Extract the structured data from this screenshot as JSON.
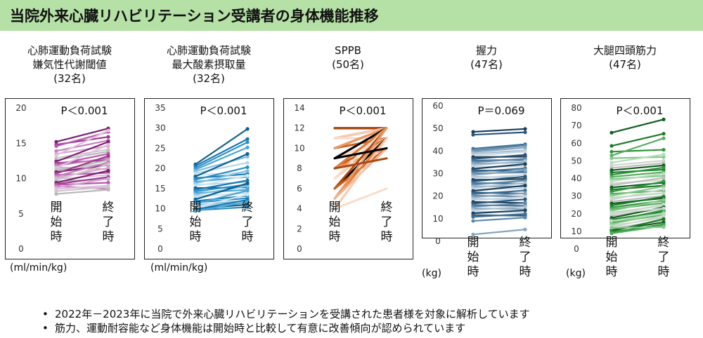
{
  "title": "当院外来心臓リハビリテーション受講者の身体機能推移",
  "colors": {
    "title_bg": "#b5e0a6"
  },
  "notes": [
    "2022年－2023年に当院で外来心臓リハビリテーションを受講された患者様を対象に解析しています",
    "筋力、運動耐容能など身体機能は開始時と比較して有意に改善傾向が認められています"
  ],
  "chart_data": [
    {
      "type": "line",
      "title_lines": [
        "心肺運動負荷試験",
        "嫌気性代謝閾値",
        "(32名)"
      ],
      "p_label": "P＜0.001",
      "unit": "(ml/min/kg)",
      "categories": [
        "開始時",
        "終了時"
      ],
      "ylim": [
        0,
        20
      ],
      "yticks": [
        0,
        5,
        10,
        15,
        20
      ],
      "palette": [
        "#7a1f6e",
        "#9b3a90",
        "#b659aa",
        "#c77fbd",
        "#d6a3cf",
        "#e2bfdd",
        "#c9c9c9",
        "#b9b9b9"
      ],
      "pairs": [
        [
          15.2,
          17.1
        ],
        [
          14.8,
          15.9
        ],
        [
          14.6,
          16.6
        ],
        [
          13.9,
          15.4
        ],
        [
          13.5,
          14.6
        ],
        [
          13.3,
          16.8
        ],
        [
          12.9,
          14.1
        ],
        [
          12.6,
          13.8
        ],
        [
          12.4,
          15.2
        ],
        [
          12.2,
          12.6
        ],
        [
          12.0,
          13.5
        ],
        [
          11.8,
          12.9
        ],
        [
          11.6,
          11.3
        ],
        [
          11.5,
          14.8
        ],
        [
          11.3,
          12.1
        ],
        [
          11.1,
          12.6
        ],
        [
          10.9,
          11.9
        ],
        [
          10.7,
          13.2
        ],
        [
          10.5,
          10.8
        ],
        [
          10.3,
          12.3
        ],
        [
          10.1,
          11.5
        ],
        [
          9.9,
          10.5
        ],
        [
          9.8,
          12.0
        ],
        [
          9.6,
          9.9
        ],
        [
          9.4,
          11.1
        ],
        [
          9.2,
          10.2
        ],
        [
          9.1,
          9.4
        ],
        [
          8.9,
          8.5
        ],
        [
          8.7,
          10.0
        ],
        [
          8.5,
          9.0
        ],
        [
          8.2,
          8.8
        ],
        [
          7.8,
          8.4
        ]
      ]
    },
    {
      "type": "line",
      "title_lines": [
        "心肺運動負荷試験",
        "最大酸素摂取量",
        "(32名)"
      ],
      "p_label": "P＜0.001",
      "unit": "(ml/min/kg)",
      "categories": [
        "開始時",
        "終了時"
      ],
      "ylim": [
        0,
        35
      ],
      "yticks": [
        0,
        5,
        10,
        15,
        20,
        25,
        30,
        35
      ],
      "palette": [
        "#0e5f8c",
        "#1778b0",
        "#2b8fc6",
        "#4aa5d6",
        "#7fbfe2",
        "#b3d7ee",
        "#d2e6f3"
      ],
      "pairs": [
        [
          21.0,
          29.8
        ],
        [
          20.6,
          27.3
        ],
        [
          20.1,
          26.5
        ],
        [
          19.7,
          25.2
        ],
        [
          19.3,
          22.9
        ],
        [
          18.8,
          21.4
        ],
        [
          18.4,
          19.0
        ],
        [
          18.0,
          23.6
        ],
        [
          17.6,
          18.6
        ],
        [
          17.2,
          20.3
        ],
        [
          16.7,
          17.9
        ],
        [
          16.3,
          19.4
        ],
        [
          15.9,
          16.6
        ],
        [
          15.5,
          18.2
        ],
        [
          15.1,
          15.3
        ],
        [
          14.7,
          17.0
        ],
        [
          14.3,
          16.0
        ],
        [
          13.9,
          14.7
        ],
        [
          13.5,
          15.6
        ],
        [
          13.1,
          13.9
        ],
        [
          12.7,
          14.2
        ],
        [
          12.3,
          16.3
        ],
        [
          11.9,
          13.2
        ],
        [
          11.5,
          12.6
        ],
        [
          11.2,
          14.5
        ],
        [
          10.9,
          12.0
        ],
        [
          10.6,
          11.4
        ],
        [
          10.3,
          13.5
        ],
        [
          10.0,
          11.0
        ],
        [
          9.8,
          12.2
        ],
        [
          9.6,
          10.4
        ],
        [
          9.4,
          11.7
        ]
      ]
    },
    {
      "type": "line",
      "title_lines": [
        "SPPB",
        "(50名)"
      ],
      "p_label": "P＜0.001",
      "unit": "",
      "categories": [
        "開始時",
        "終了時"
      ],
      "ylim": [
        0,
        14
      ],
      "yticks": [
        0,
        2,
        4,
        6,
        8,
        10,
        12,
        14
      ],
      "palette": [
        "#000000",
        "#a9480f",
        "#c95d1a",
        "#e07a3a",
        "#eb9a66",
        "#f2b48f",
        "#f6c9ae",
        "#fadccc"
      ],
      "pairs": [
        [
          12,
          12
        ],
        [
          12,
          12
        ],
        [
          12,
          12
        ],
        [
          12,
          12
        ],
        [
          12,
          12
        ],
        [
          12,
          12
        ],
        [
          12,
          12
        ],
        [
          12,
          12
        ],
        [
          12,
          12
        ],
        [
          12,
          12
        ],
        [
          12,
          12
        ],
        [
          12,
          12
        ],
        [
          12,
          12
        ],
        [
          12,
          12
        ],
        [
          12,
          12
        ],
        [
          12,
          12
        ],
        [
          12,
          12
        ],
        [
          12,
          12
        ],
        [
          11,
          12
        ],
        [
          11,
          12
        ],
        [
          11,
          12
        ],
        [
          11,
          12
        ],
        [
          11,
          12
        ],
        [
          11,
          11
        ],
        [
          10,
          12
        ],
        [
          10,
          12
        ],
        [
          10,
          11
        ],
        [
          10,
          12
        ],
        [
          10,
          12
        ],
        [
          9,
          12
        ],
        [
          9,
          12
        ],
        [
          9,
          11
        ],
        [
          9,
          12
        ],
        [
          8,
          12
        ],
        [
          8,
          11
        ],
        [
          8,
          12
        ],
        [
          8,
          10
        ],
        [
          7,
          12
        ],
        [
          7,
          11
        ],
        [
          7,
          12
        ],
        [
          6,
          11
        ],
        [
          6,
          12
        ],
        [
          6,
          10
        ],
        [
          5,
          11
        ],
        [
          5,
          12
        ],
        [
          5,
          10
        ],
        [
          4,
          11
        ],
        [
          4,
          6
        ],
        [
          9,
          10
        ],
        [
          8,
          9
        ]
      ]
    },
    {
      "type": "line",
      "title_lines": [
        "握力",
        "(47名)"
      ],
      "p_label": "P＝0.069",
      "unit": "(kg)",
      "categories": [
        "開始時",
        "終了時"
      ],
      "ylim": [
        0,
        60
      ],
      "yticks": [
        0,
        10,
        20,
        30,
        40,
        50,
        60
      ],
      "palette": [
        "#1f3f5b",
        "#2b587c",
        "#3f6f94",
        "#5f88a9",
        "#86a5be",
        "#a9c0d1",
        "#c8d6e1"
      ],
      "pairs": [
        [
          48.5,
          49.8
        ],
        [
          47.2,
          48.3
        ],
        [
          41.0,
          43.0
        ],
        [
          40.2,
          42.4
        ],
        [
          39.6,
          41.5
        ],
        [
          38.9,
          40.3
        ],
        [
          38.0,
          39.7
        ],
        [
          37.3,
          37.5
        ],
        [
          36.5,
          38.3
        ],
        [
          35.8,
          36.1
        ],
        [
          35.0,
          36.6
        ],
        [
          34.4,
          34.9
        ],
        [
          33.6,
          35.6
        ],
        [
          32.9,
          33.2
        ],
        [
          32.1,
          34.2
        ],
        [
          31.5,
          31.0
        ],
        [
          30.8,
          32.3
        ],
        [
          30.1,
          30.5
        ],
        [
          29.3,
          31.6
        ],
        [
          28.6,
          28.2
        ],
        [
          27.9,
          29.5
        ],
        [
          27.2,
          27.6
        ],
        [
          26.5,
          28.7
        ],
        [
          25.8,
          25.5
        ],
        [
          25.1,
          26.9
        ],
        [
          24.4,
          24.2
        ],
        [
          23.7,
          25.8
        ],
        [
          23.0,
          23.4
        ],
        [
          22.3,
          24.7
        ],
        [
          21.6,
          21.1
        ],
        [
          20.9,
          22.5
        ],
        [
          20.2,
          19.8
        ],
        [
          19.5,
          21.3
        ],
        [
          18.8,
          18.4
        ],
        [
          18.1,
          19.7
        ],
        [
          17.4,
          17.0
        ],
        [
          16.7,
          18.6
        ],
        [
          16.0,
          15.7
        ],
        [
          15.3,
          16.9
        ],
        [
          14.6,
          14.2
        ],
        [
          13.9,
          15.3
        ],
        [
          13.2,
          12.8
        ],
        [
          12.4,
          13.7
        ],
        [
          11.6,
          11.3
        ],
        [
          10.8,
          12.1
        ],
        [
          9.0,
          10.5
        ],
        [
          3.0,
          5.2
        ]
      ]
    },
    {
      "type": "line",
      "title_lines": [
        "大腿四頭筋力",
        "(47名)"
      ],
      "p_label": "P＜0.001",
      "unit": "(kg)",
      "categories": [
        "開始時",
        "終了時"
      ],
      "ylim": [
        0,
        80
      ],
      "yticks": [
        0,
        10,
        20,
        30,
        40,
        50,
        60,
        70,
        80
      ],
      "palette": [
        "#0f5c1c",
        "#1c7a2a",
        "#2f943c",
        "#56ad5f",
        "#86c78b",
        "#b4dcb6",
        "#cfd6cf",
        "#bdbdbd"
      ],
      "pairs": [
        [
          66.0,
          73.5
        ],
        [
          58.5,
          65.4
        ],
        [
          55.2,
          56.3
        ],
        [
          53.0,
          62.8
        ],
        [
          51.5,
          52.2
        ],
        [
          49.0,
          53.6
        ],
        [
          47.5,
          50.1
        ],
        [
          46.0,
          48.7
        ],
        [
          44.7,
          47.4
        ],
        [
          43.4,
          45.0
        ],
        [
          42.1,
          46.2
        ],
        [
          40.9,
          43.6
        ],
        [
          39.7,
          41.5
        ],
        [
          38.5,
          42.8
        ],
        [
          37.3,
          39.0
        ],
        [
          36.1,
          40.4
        ],
        [
          34.9,
          37.6
        ],
        [
          33.7,
          36.0
        ],
        [
          32.5,
          38.3
        ],
        [
          31.3,
          33.1
        ],
        [
          30.2,
          35.5
        ],
        [
          29.1,
          31.7
        ],
        [
          28.0,
          34.0
        ],
        [
          26.9,
          30.2
        ],
        [
          25.8,
          28.8
        ],
        [
          24.7,
          29.6
        ],
        [
          23.6,
          27.4
        ],
        [
          22.6,
          26.1
        ],
        [
          21.6,
          27.9
        ],
        [
          20.6,
          24.6
        ],
        [
          19.6,
          25.3
        ],
        [
          18.6,
          22.9
        ],
        [
          17.6,
          23.7
        ],
        [
          16.7,
          21.2
        ],
        [
          15.8,
          22.0
        ],
        [
          14.9,
          19.4
        ],
        [
          14.0,
          20.6
        ],
        [
          13.1,
          17.8
        ],
        [
          12.3,
          18.9
        ],
        [
          11.5,
          16.2
        ],
        [
          10.7,
          15.1
        ],
        [
          10.0,
          17.0
        ],
        [
          9.4,
          14.0
        ],
        [
          8.8,
          13.2
        ],
        [
          12.0,
          12.4
        ],
        [
          16.0,
          20.0
        ],
        [
          20.0,
          23.0
        ]
      ]
    }
  ]
}
